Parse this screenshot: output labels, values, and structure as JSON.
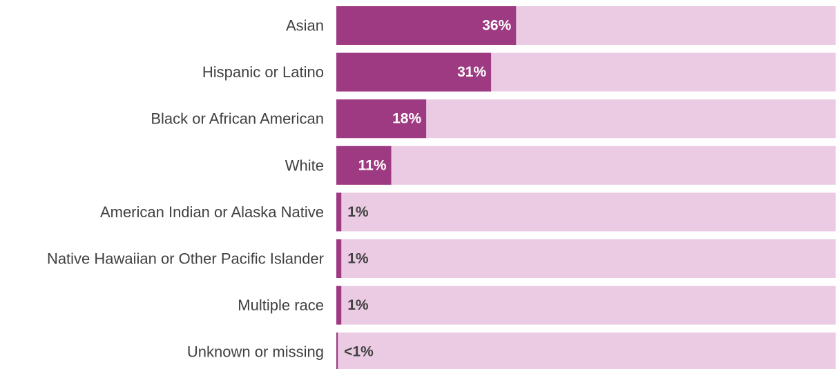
{
  "chart_data": {
    "type": "bar",
    "orientation": "horizontal",
    "categories": [
      "Asian",
      "Hispanic or Latino",
      "Black or African American",
      "White",
      "American Indian or Alaska Native",
      "Native Hawaiian or Other Pacific Islander",
      "Multiple race",
      "Unknown or missing"
    ],
    "values": [
      36,
      31,
      18,
      11,
      1,
      1,
      1,
      0.3
    ],
    "value_labels": [
      "36%",
      "31%",
      "18%",
      "11%",
      "1%",
      "1%",
      "1%",
      "<1%"
    ],
    "xlim": [
      0,
      100
    ],
    "grid": false,
    "legend": "none",
    "colors": {
      "bar": "#9e3a82",
      "track": "#ebcbe3",
      "label_inside": "#ffffff",
      "label_outside": "#404040",
      "category_text": "#404040"
    }
  }
}
